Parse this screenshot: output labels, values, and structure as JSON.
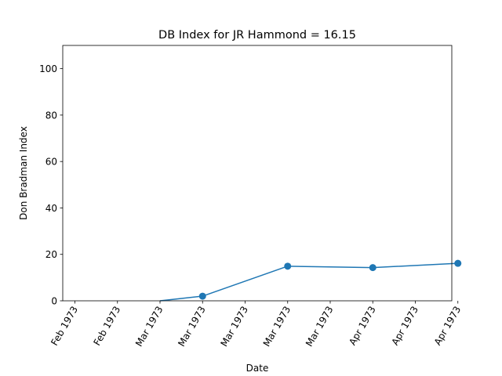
{
  "chart_data": {
    "type": "line",
    "title": "DB Index for JR Hammond = 16.15",
    "xlabel": "Date",
    "ylabel": "Don Bradman Index",
    "ylim": [
      0,
      110
    ],
    "xlim": [
      "1973-02-16",
      "1973-04-21"
    ],
    "yticks": [
      0,
      20,
      40,
      60,
      80,
      100
    ],
    "xticks": [
      {
        "value": "1973-02-18",
        "label": "Feb 1973"
      },
      {
        "value": "1973-02-25",
        "label": "Feb 1973"
      },
      {
        "value": "1973-03-04",
        "label": "Mar 1973"
      },
      {
        "value": "1973-03-11",
        "label": "Mar 1973"
      },
      {
        "value": "1973-03-18",
        "label": "Mar 1973"
      },
      {
        "value": "1973-03-25",
        "label": "Mar 1973"
      },
      {
        "value": "1973-04-01",
        "label": "Mar 1973"
      },
      {
        "value": "1973-04-08",
        "label": "Apr 1973"
      },
      {
        "value": "1973-04-15",
        "label": "Apr 1973"
      },
      {
        "value": "1973-04-22",
        "label": "Apr 1973"
      }
    ],
    "grid": false,
    "legend": "none",
    "series": [
      {
        "color": "#1f77b4",
        "points": [
          {
            "x": "1973-03-04",
            "y": 0,
            "marker": false
          },
          {
            "x": "1973-03-11",
            "y": 2.0,
            "marker": true
          },
          {
            "x": "1973-03-25",
            "y": 14.9,
            "marker": true
          },
          {
            "x": "1973-04-08",
            "y": 14.3,
            "marker": true
          },
          {
            "x": "1973-04-22",
            "y": 16.15,
            "marker": true
          }
        ]
      }
    ]
  }
}
